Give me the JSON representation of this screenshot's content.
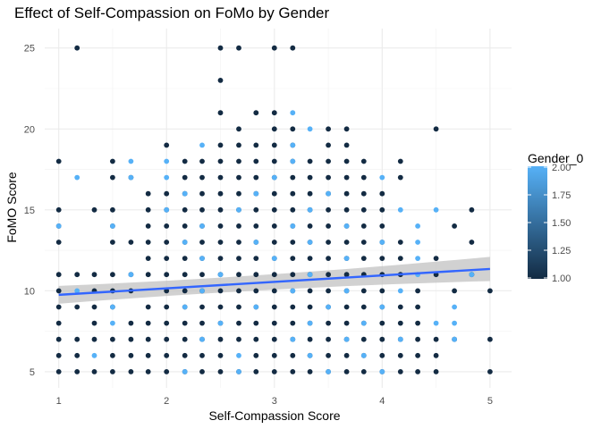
{
  "chart_data": {
    "type": "scatter",
    "title": "Effect of Self-Compassion on FoMo by Gender",
    "xlabel": "Self-Compassion Score",
    "ylabel": "FoMO Score",
    "xlim": [
      0.87,
      5.2
    ],
    "ylim": [
      4.0,
      26.2
    ],
    "x_ticks": [
      1,
      2,
      3,
      4,
      5
    ],
    "y_ticks": [
      5,
      10,
      15,
      20,
      25
    ],
    "grid": true,
    "legend": {
      "title": "Gender_0",
      "position": "right",
      "ticks": [
        "2.00",
        "1.75",
        "1.50",
        "1.25",
        "1.00"
      ],
      "range": [
        1.0,
        2.0
      ]
    },
    "colors": {
      "low": "#132b43",
      "high": "#56b1f7",
      "line": "#3366ff",
      "ribbon": "#bdbdbd"
    },
    "regression": {
      "x": [
        1,
        5
      ],
      "y": [
        9.75,
        11.35
      ],
      "ci_halfwidth": [
        0.55,
        0.75
      ]
    },
    "points": [
      [
        1,
        5,
        1
      ],
      [
        1.17,
        5,
        1
      ],
      [
        1.33,
        5,
        1
      ],
      [
        1.5,
        5,
        1
      ],
      [
        1.67,
        5,
        1
      ],
      [
        1.83,
        5,
        1
      ],
      [
        2,
        5,
        1
      ],
      [
        2.17,
        5,
        1
      ],
      [
        2.33,
        5,
        1
      ],
      [
        2.5,
        5,
        1
      ],
      [
        2.67,
        5,
        1
      ],
      [
        2.83,
        5,
        1
      ],
      [
        3,
        5,
        1
      ],
      [
        3.17,
        5,
        1
      ],
      [
        3.33,
        5,
        1
      ],
      [
        3.5,
        5,
        1
      ],
      [
        3.67,
        5,
        1
      ],
      [
        3.83,
        5,
        1
      ],
      [
        4,
        5,
        1
      ],
      [
        4.17,
        5,
        1
      ],
      [
        4.33,
        5,
        1
      ],
      [
        4.5,
        5,
        1
      ],
      [
        5,
        5,
        1
      ],
      [
        2.17,
        5,
        2
      ],
      [
        2.67,
        5,
        2
      ],
      [
        3.5,
        5,
        2
      ],
      [
        4,
        5,
        2
      ],
      [
        1,
        6,
        1
      ],
      [
        1.17,
        6,
        1
      ],
      [
        1.5,
        6,
        1
      ],
      [
        1.67,
        6,
        1
      ],
      [
        1.83,
        6,
        1
      ],
      [
        2,
        6,
        1
      ],
      [
        2.17,
        6,
        1
      ],
      [
        2.33,
        6,
        1
      ],
      [
        2.5,
        6,
        1
      ],
      [
        2.83,
        6,
        1
      ],
      [
        3,
        6,
        1
      ],
      [
        3.17,
        6,
        1
      ],
      [
        3.33,
        6,
        1
      ],
      [
        3.5,
        6,
        1
      ],
      [
        3.67,
        6,
        1
      ],
      [
        3.83,
        6,
        1
      ],
      [
        4,
        6,
        1
      ],
      [
        4.17,
        6,
        1
      ],
      [
        4.33,
        6,
        1
      ],
      [
        4.5,
        6,
        1
      ],
      [
        1.33,
        6,
        2
      ],
      [
        2.67,
        6,
        2
      ],
      [
        3.33,
        6,
        2
      ],
      [
        3.83,
        6,
        2
      ],
      [
        1,
        7,
        1
      ],
      [
        1.17,
        7,
        1
      ],
      [
        1.33,
        7,
        1
      ],
      [
        1.5,
        7,
        1
      ],
      [
        1.67,
        7,
        1
      ],
      [
        1.83,
        7,
        1
      ],
      [
        2,
        7,
        1
      ],
      [
        2.17,
        7,
        1
      ],
      [
        2.33,
        7,
        1
      ],
      [
        2.5,
        7,
        1
      ],
      [
        2.67,
        7,
        1
      ],
      [
        2.83,
        7,
        1
      ],
      [
        3,
        7,
        1
      ],
      [
        3.17,
        7,
        1
      ],
      [
        3.33,
        7,
        1
      ],
      [
        3.5,
        7,
        1
      ],
      [
        3.67,
        7,
        1
      ],
      [
        3.83,
        7,
        1
      ],
      [
        4,
        7,
        1
      ],
      [
        4.17,
        7,
        1
      ],
      [
        4.33,
        7,
        1
      ],
      [
        4.5,
        7,
        1
      ],
      [
        4.67,
        7,
        1
      ],
      [
        5,
        7,
        1
      ],
      [
        2.33,
        7,
        2
      ],
      [
        3.17,
        7,
        2
      ],
      [
        3.67,
        7,
        2
      ],
      [
        4.17,
        7,
        2
      ],
      [
        4.67,
        7,
        2
      ],
      [
        1,
        8,
        1
      ],
      [
        1.33,
        8,
        1
      ],
      [
        1.67,
        8,
        1
      ],
      [
        1.83,
        8,
        1
      ],
      [
        2,
        8,
        1
      ],
      [
        2.17,
        8,
        1
      ],
      [
        2.33,
        8,
        1
      ],
      [
        2.5,
        8,
        1
      ],
      [
        2.67,
        8,
        1
      ],
      [
        2.83,
        8,
        1
      ],
      [
        3,
        8,
        1
      ],
      [
        3.17,
        8,
        1
      ],
      [
        3.33,
        8,
        1
      ],
      [
        3.5,
        8,
        1
      ],
      [
        3.67,
        8,
        1
      ],
      [
        3.83,
        8,
        1
      ],
      [
        4,
        8,
        1
      ],
      [
        4.17,
        8,
        1
      ],
      [
        4.33,
        8,
        1
      ],
      [
        1.5,
        8,
        2
      ],
      [
        2.5,
        8,
        2
      ],
      [
        3.33,
        8,
        2
      ],
      [
        3.83,
        8,
        2
      ],
      [
        4.5,
        8,
        2
      ],
      [
        4.67,
        8,
        2
      ],
      [
        1,
        9,
        1
      ],
      [
        1.17,
        9,
        1
      ],
      [
        1.33,
        9,
        1
      ],
      [
        1.5,
        9,
        1
      ],
      [
        1.83,
        9,
        1
      ],
      [
        2,
        9,
        1
      ],
      [
        2.17,
        9,
        1
      ],
      [
        2.33,
        9,
        1
      ],
      [
        2.5,
        9,
        1
      ],
      [
        2.67,
        9,
        1
      ],
      [
        2.83,
        9,
        1
      ],
      [
        3,
        9,
        1
      ],
      [
        3.17,
        9,
        1
      ],
      [
        3.33,
        9,
        1
      ],
      [
        3.5,
        9,
        1
      ],
      [
        3.67,
        9,
        1
      ],
      [
        3.83,
        9,
        1
      ],
      [
        4,
        9,
        1
      ],
      [
        4.17,
        9,
        1
      ],
      [
        4.33,
        9,
        1
      ],
      [
        1.5,
        9,
        2
      ],
      [
        2.17,
        9,
        2
      ],
      [
        2.83,
        9,
        2
      ],
      [
        3.5,
        9,
        2
      ],
      [
        4,
        9,
        2
      ],
      [
        4.67,
        9,
        2
      ],
      [
        1,
        10,
        1
      ],
      [
        1.33,
        10,
        1
      ],
      [
        1.5,
        10,
        1
      ],
      [
        1.67,
        10,
        1
      ],
      [
        2,
        10,
        1
      ],
      [
        2.17,
        10,
        1
      ],
      [
        2.33,
        10,
        1
      ],
      [
        2.5,
        10,
        1
      ],
      [
        2.67,
        10,
        1
      ],
      [
        2.83,
        10,
        1
      ],
      [
        3,
        10,
        1
      ],
      [
        3.17,
        10,
        1
      ],
      [
        3.33,
        10,
        1
      ],
      [
        3.5,
        10,
        1
      ],
      [
        3.67,
        10,
        1
      ],
      [
        3.83,
        10,
        1
      ],
      [
        4,
        10,
        1
      ],
      [
        4.33,
        10,
        1
      ],
      [
        4.67,
        10,
        1
      ],
      [
        5,
        10,
        1
      ],
      [
        1.17,
        10,
        2
      ],
      [
        2.33,
        10,
        2
      ],
      [
        3.17,
        10,
        2
      ],
      [
        3.67,
        10,
        2
      ],
      [
        4.17,
        10,
        2
      ],
      [
        1,
        11,
        1
      ],
      [
        1.17,
        11,
        1
      ],
      [
        1.33,
        11,
        1
      ],
      [
        1.5,
        11,
        1
      ],
      [
        1.67,
        11,
        1
      ],
      [
        1.83,
        11,
        1
      ],
      [
        2,
        11,
        1
      ],
      [
        2.17,
        11,
        1
      ],
      [
        2.33,
        11,
        1
      ],
      [
        2.5,
        11,
        1
      ],
      [
        2.67,
        11,
        1
      ],
      [
        2.83,
        11,
        1
      ],
      [
        3,
        11,
        1
      ],
      [
        3.17,
        11,
        1
      ],
      [
        3.33,
        11,
        1
      ],
      [
        3.5,
        11,
        1
      ],
      [
        3.67,
        11,
        1
      ],
      [
        3.83,
        11,
        1
      ],
      [
        4,
        11,
        1
      ],
      [
        4.17,
        11,
        1
      ],
      [
        4.5,
        11,
        1
      ],
      [
        4.83,
        11,
        1
      ],
      [
        1.67,
        11,
        2
      ],
      [
        2.5,
        11,
        2
      ],
      [
        3.33,
        11,
        2
      ],
      [
        4.33,
        11,
        2
      ],
      [
        4.83,
        11,
        2
      ],
      [
        1.83,
        12,
        1
      ],
      [
        2,
        12,
        1
      ],
      [
        2.17,
        12,
        1
      ],
      [
        2.33,
        12,
        1
      ],
      [
        2.5,
        12,
        1
      ],
      [
        2.67,
        12,
        1
      ],
      [
        2.83,
        12,
        1
      ],
      [
        3,
        12,
        1
      ],
      [
        3.17,
        12,
        1
      ],
      [
        3.33,
        12,
        1
      ],
      [
        3.5,
        12,
        1
      ],
      [
        3.67,
        12,
        1
      ],
      [
        3.83,
        12,
        1
      ],
      [
        4,
        12,
        1
      ],
      [
        4.17,
        12,
        1
      ],
      [
        4.5,
        12,
        1
      ],
      [
        2.33,
        12,
        2
      ],
      [
        3,
        12,
        2
      ],
      [
        3.67,
        12,
        2
      ],
      [
        4.33,
        12,
        2
      ],
      [
        1,
        13,
        1
      ],
      [
        1.5,
        13,
        1
      ],
      [
        1.67,
        13,
        1
      ],
      [
        1.83,
        13,
        1
      ],
      [
        2,
        13,
        1
      ],
      [
        2.17,
        13,
        1
      ],
      [
        2.33,
        13,
        1
      ],
      [
        2.5,
        13,
        1
      ],
      [
        2.67,
        13,
        1
      ],
      [
        2.83,
        13,
        1
      ],
      [
        3,
        13,
        1
      ],
      [
        3.17,
        13,
        1
      ],
      [
        3.33,
        13,
        1
      ],
      [
        3.5,
        13,
        1
      ],
      [
        3.67,
        13,
        1
      ],
      [
        3.83,
        13,
        1
      ],
      [
        4,
        13,
        1
      ],
      [
        4.17,
        13,
        1
      ],
      [
        4.83,
        13,
        1
      ],
      [
        2.17,
        13,
        2
      ],
      [
        2.83,
        13,
        2
      ],
      [
        3.33,
        13,
        2
      ],
      [
        4,
        13,
        2
      ],
      [
        4.33,
        13,
        2
      ],
      [
        1,
        14,
        1
      ],
      [
        1.5,
        14,
        1
      ],
      [
        1.83,
        14,
        1
      ],
      [
        2,
        14,
        1
      ],
      [
        2.17,
        14,
        1
      ],
      [
        2.33,
        14,
        1
      ],
      [
        2.5,
        14,
        1
      ],
      [
        2.67,
        14,
        1
      ],
      [
        2.83,
        14,
        1
      ],
      [
        3,
        14,
        1
      ],
      [
        3.17,
        14,
        1
      ],
      [
        3.33,
        14,
        1
      ],
      [
        3.5,
        14,
        1
      ],
      [
        3.67,
        14,
        1
      ],
      [
        3.83,
        14,
        1
      ],
      [
        4,
        14,
        1
      ],
      [
        4.67,
        14,
        1
      ],
      [
        1,
        14,
        2
      ],
      [
        1.5,
        14,
        2
      ],
      [
        2.33,
        14,
        2
      ],
      [
        3.17,
        14,
        2
      ],
      [
        3.67,
        14,
        2
      ],
      [
        4.33,
        14,
        2
      ],
      [
        1,
        15,
        1
      ],
      [
        1.33,
        15,
        1
      ],
      [
        1.5,
        15,
        1
      ],
      [
        1.83,
        15,
        1
      ],
      [
        2,
        15,
        1
      ],
      [
        2.17,
        15,
        1
      ],
      [
        2.33,
        15,
        1
      ],
      [
        2.5,
        15,
        1
      ],
      [
        2.67,
        15,
        1
      ],
      [
        2.83,
        15,
        1
      ],
      [
        3,
        15,
        1
      ],
      [
        3.17,
        15,
        1
      ],
      [
        3.33,
        15,
        1
      ],
      [
        3.5,
        15,
        1
      ],
      [
        3.67,
        15,
        1
      ],
      [
        3.83,
        15,
        1
      ],
      [
        4,
        15,
        1
      ],
      [
        4.83,
        15,
        1
      ],
      [
        2,
        15,
        2
      ],
      [
        2.67,
        15,
        2
      ],
      [
        3.33,
        15,
        2
      ],
      [
        4.17,
        15,
        2
      ],
      [
        4.5,
        15,
        2
      ],
      [
        1.83,
        16,
        1
      ],
      [
        2,
        16,
        1
      ],
      [
        2.17,
        16,
        1
      ],
      [
        2.33,
        16,
        1
      ],
      [
        2.5,
        16,
        1
      ],
      [
        2.67,
        16,
        1
      ],
      [
        2.83,
        16,
        1
      ],
      [
        3,
        16,
        1
      ],
      [
        3.17,
        16,
        1
      ],
      [
        3.33,
        16,
        1
      ],
      [
        3.5,
        16,
        1
      ],
      [
        3.67,
        16,
        1
      ],
      [
        3.83,
        16,
        1
      ],
      [
        4,
        16,
        1
      ],
      [
        2.17,
        16,
        2
      ],
      [
        2.83,
        16,
        2
      ],
      [
        3.5,
        16,
        2
      ],
      [
        1.5,
        17,
        1
      ],
      [
        1.67,
        17,
        1
      ],
      [
        2.17,
        17,
        1
      ],
      [
        2.33,
        17,
        1
      ],
      [
        2.5,
        17,
        1
      ],
      [
        2.67,
        17,
        1
      ],
      [
        2.83,
        17,
        1
      ],
      [
        3,
        17,
        1
      ],
      [
        3.17,
        17,
        1
      ],
      [
        3.33,
        17,
        1
      ],
      [
        3.5,
        17,
        1
      ],
      [
        3.67,
        17,
        1
      ],
      [
        3.83,
        17,
        1
      ],
      [
        4.17,
        17,
        1
      ],
      [
        1.17,
        17,
        2
      ],
      [
        1.67,
        17,
        2
      ],
      [
        2,
        17,
        2
      ],
      [
        3,
        17,
        2
      ],
      [
        4,
        17,
        2
      ],
      [
        1,
        18,
        1
      ],
      [
        1.5,
        18,
        1
      ],
      [
        2.17,
        18,
        1
      ],
      [
        2.33,
        18,
        1
      ],
      [
        2.5,
        18,
        1
      ],
      [
        2.67,
        18,
        1
      ],
      [
        2.83,
        18,
        1
      ],
      [
        3,
        18,
        1
      ],
      [
        3.17,
        18,
        1
      ],
      [
        3.33,
        18,
        1
      ],
      [
        3.5,
        18,
        1
      ],
      [
        3.67,
        18,
        1
      ],
      [
        3.83,
        18,
        1
      ],
      [
        4.17,
        18,
        1
      ],
      [
        1.67,
        18,
        2
      ],
      [
        2,
        18,
        2
      ],
      [
        3.17,
        18,
        2
      ],
      [
        2,
        19,
        1
      ],
      [
        2.5,
        19,
        1
      ],
      [
        2.67,
        19,
        1
      ],
      [
        2.83,
        19,
        1
      ],
      [
        3,
        19,
        1
      ],
      [
        3.17,
        19,
        1
      ],
      [
        3.5,
        19,
        1
      ],
      [
        3.67,
        19,
        1
      ],
      [
        2.33,
        19,
        2
      ],
      [
        3.17,
        19,
        2
      ],
      [
        2.67,
        20,
        1
      ],
      [
        3,
        20,
        1
      ],
      [
        3.17,
        20,
        1
      ],
      [
        3.5,
        20,
        1
      ],
      [
        3.67,
        20,
        1
      ],
      [
        4.5,
        20,
        1
      ],
      [
        3.33,
        20,
        2
      ],
      [
        2.5,
        21,
        1
      ],
      [
        2.83,
        21,
        1
      ],
      [
        3,
        21,
        1
      ],
      [
        3.17,
        21,
        2
      ],
      [
        2.5,
        23,
        1
      ],
      [
        1.17,
        25,
        1
      ],
      [
        2.5,
        25,
        1
      ],
      [
        2.67,
        25,
        1
      ],
      [
        3,
        25,
        1
      ],
      [
        3.17,
        25,
        1
      ]
    ]
  }
}
